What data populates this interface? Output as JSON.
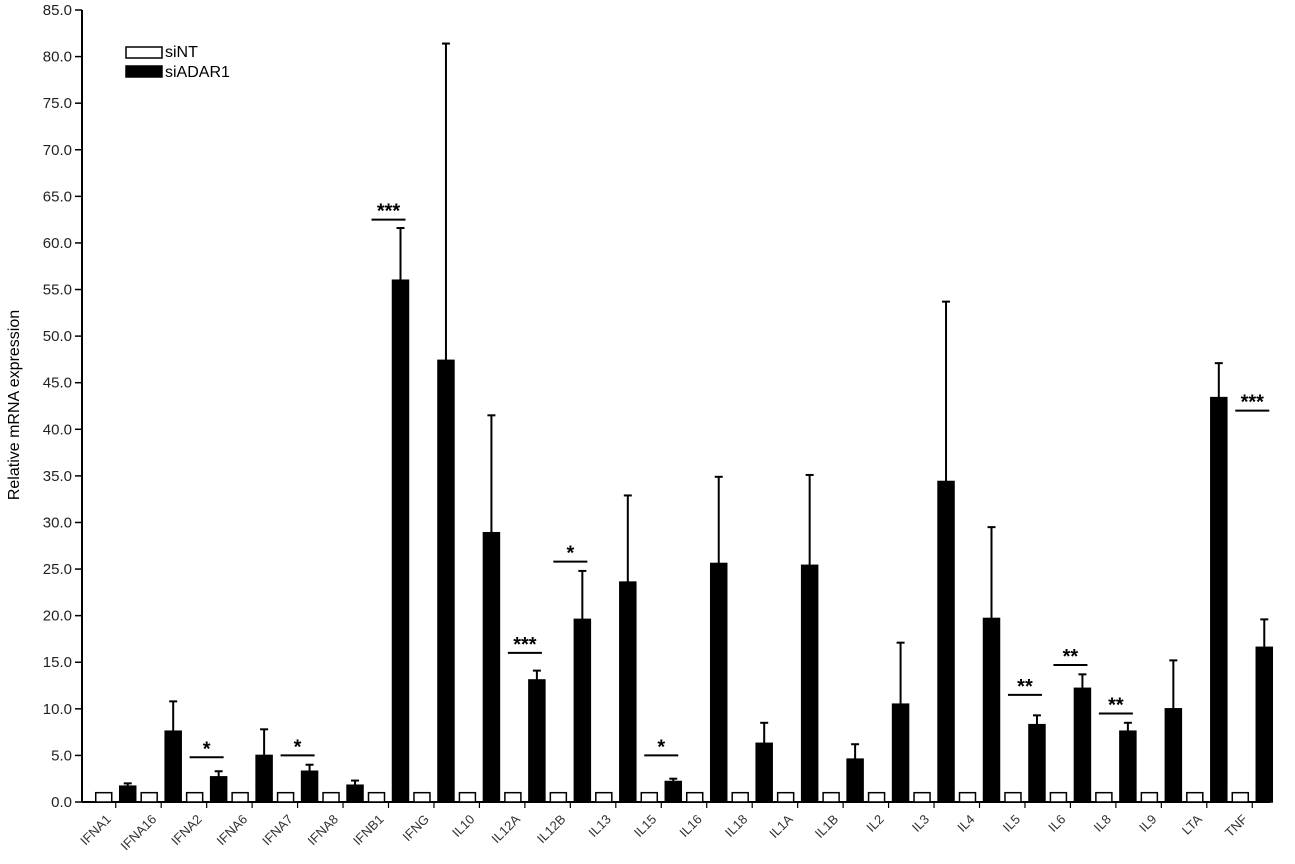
{
  "chart_data": {
    "type": "bar",
    "title": "",
    "xlabel": "",
    "ylabel": "Relative mRNA expression",
    "ylim": [
      0,
      85
    ],
    "yticks": [
      "0.0",
      "5.0",
      "10.0",
      "15.0",
      "20.0",
      "25.0",
      "30.0",
      "35.0",
      "40.0",
      "45.0",
      "50.0",
      "55.0",
      "60.0",
      "65.0",
      "70.0",
      "75.0",
      "80.0",
      "85.0"
    ],
    "grid": false,
    "legend_position": "top-left",
    "categories": [
      "IFNA1",
      "IFNA16",
      "IFNA2",
      "IFNA6",
      "IFNA7",
      "IFNA8",
      "IFNB1",
      "IFNG",
      "IL10",
      "IL12A",
      "IL12B",
      "IL13",
      "IL15",
      "IL16",
      "IL18",
      "IL1A",
      "IL1B",
      "IL2",
      "IL3",
      "IL4",
      "IL5",
      "IL6",
      "IL8",
      "IL9",
      "LTA",
      "TNF"
    ],
    "series": [
      {
        "name": "siNT",
        "color": "#ffffff",
        "values": [
          1,
          1,
          1,
          1,
          1,
          1,
          1,
          1,
          1,
          1,
          1,
          1,
          1,
          1,
          1,
          1,
          1,
          1,
          1,
          1,
          1,
          1,
          1,
          1,
          1,
          1
        ],
        "errors": [
          0,
          0,
          0,
          0,
          0,
          0,
          0,
          0,
          0,
          0,
          0,
          0,
          0,
          0,
          0,
          0,
          0,
          0,
          0,
          0,
          0,
          0,
          0,
          0,
          0,
          0
        ]
      },
      {
        "name": "siADAR1",
        "color": "#000000",
        "values": [
          1.7,
          7.6,
          2.7,
          5.0,
          3.3,
          1.8,
          56.0,
          47.4,
          28.9,
          13.1,
          19.6,
          23.6,
          2.2,
          25.6,
          6.3,
          25.4,
          4.6,
          10.5,
          34.4,
          19.7,
          8.3,
          12.2,
          7.6,
          10.0,
          43.4,
          16.6
        ],
        "errors": [
          0.3,
          3.2,
          0.6,
          2.8,
          0.7,
          0.5,
          5.6,
          34.0,
          12.6,
          1.0,
          5.2,
          9.3,
          0.3,
          9.3,
          2.2,
          9.7,
          1.6,
          6.6,
          19.3,
          9.8,
          1.0,
          1.5,
          0.9,
          5.2,
          3.7,
          3.0
        ]
      }
    ],
    "annotations": [
      {
        "category": "IFNA2",
        "label": "*",
        "y": 4.8
      },
      {
        "category": "IFNA7",
        "label": "*",
        "y": 5.0
      },
      {
        "category": "IFNB1",
        "label": "***",
        "y": 62.5
      },
      {
        "category": "IL12A",
        "label": "***",
        "y": 16.0
      },
      {
        "category": "IL12B",
        "label": "*",
        "y": 25.8
      },
      {
        "category": "IL15",
        "label": "*",
        "y": 5.0
      },
      {
        "category": "IL5",
        "label": "**",
        "y": 11.5
      },
      {
        "category": "IL6",
        "label": "**",
        "y": 14.7
      },
      {
        "category": "IL8",
        "label": "**",
        "y": 9.5
      },
      {
        "category": "TNF",
        "label": "***",
        "y": 42.0
      }
    ]
  }
}
